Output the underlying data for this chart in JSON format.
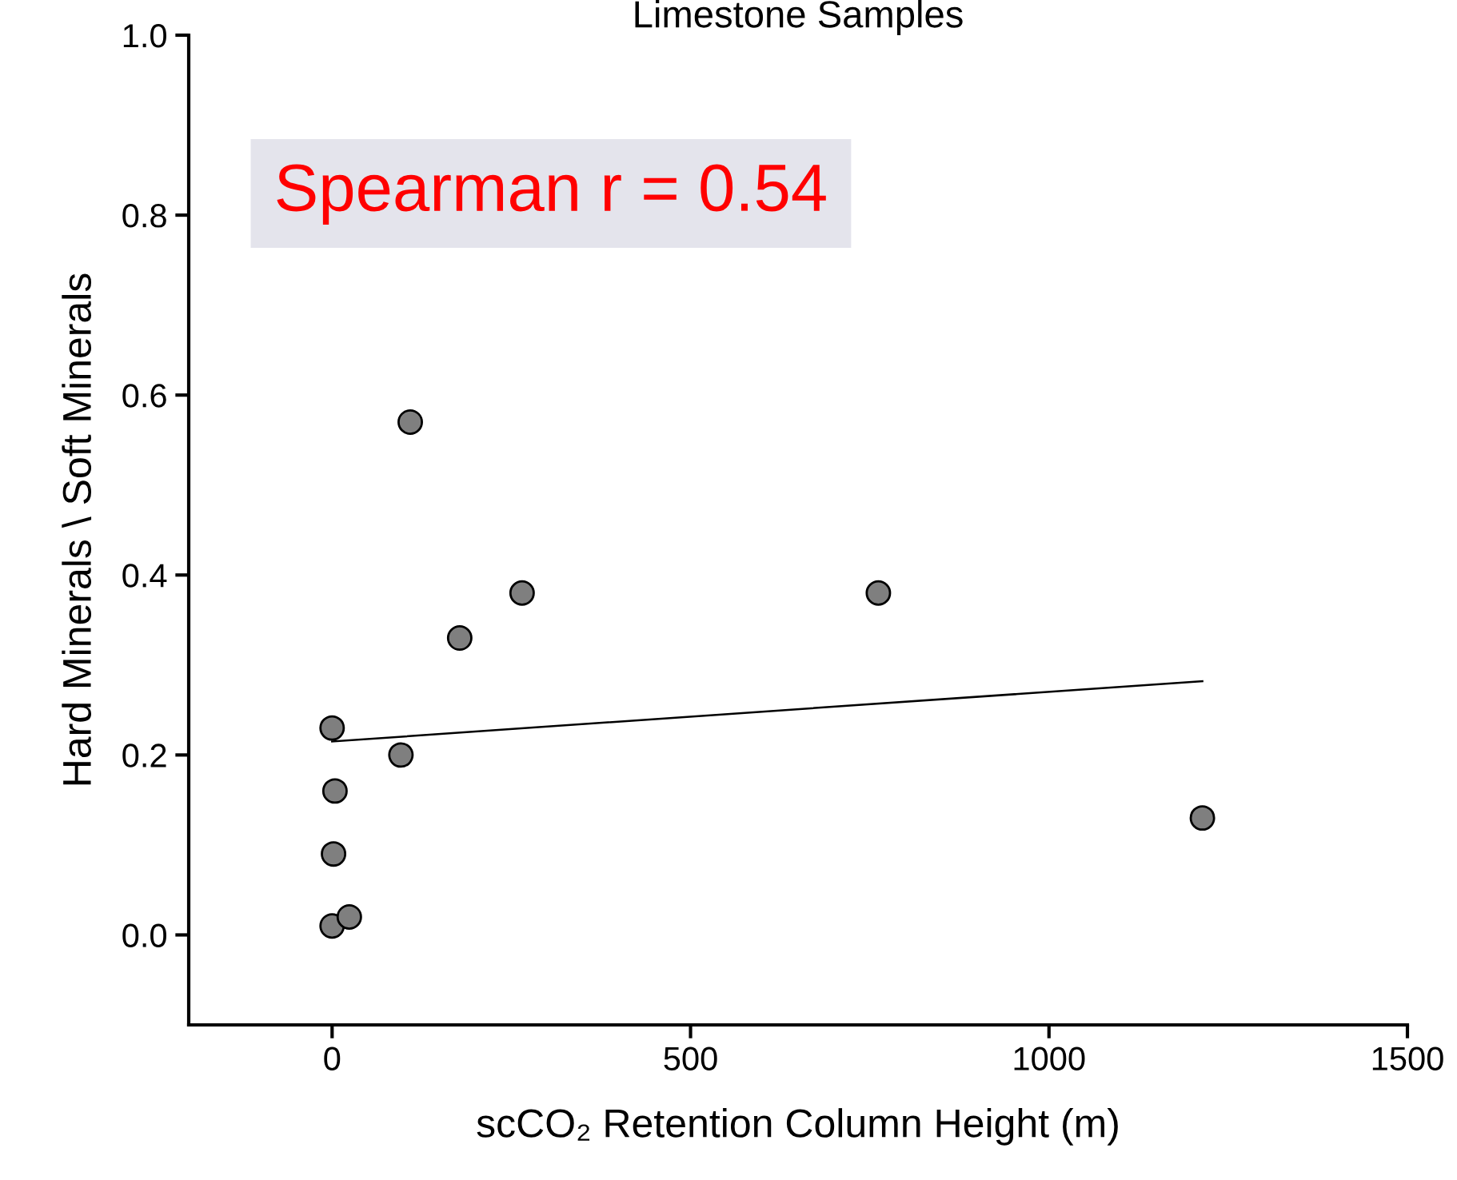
{
  "chart_data": {
    "type": "scatter",
    "title": "Limestone Samples",
    "xlabel": "scCO₂ Retention Column Height (m)",
    "ylabel": "Hard Minerals \\ Soft Minerals",
    "xlim": [
      -200,
      1500
    ],
    "xticks": [
      0,
      500,
      1000,
      1500
    ],
    "ylim": [
      -0.1,
      1.0
    ],
    "yticks": [
      {
        "value": 0.0,
        "label": "0.0"
      },
      0.2,
      0.4,
      0.6,
      0.8,
      {
        "value": 1.0,
        "label": "1.0"
      }
    ],
    "grid": false,
    "series": [
      {
        "marker": "circle",
        "color": "#7f7f7f",
        "x": [
          0,
          24,
          2,
          4,
          0,
          96,
          109,
          178,
          265,
          762,
          1214
        ],
        "values": [
          0.01,
          0.02,
          0.09,
          0.16,
          0.23,
          0.2,
          0.57,
          0.33,
          0.38,
          0.38,
          0.13
        ]
      },
      {
        "type": "line",
        "color": "#000000",
        "x": [
          0,
          1214
        ],
        "values": [
          0.215,
          0.282
        ]
      }
    ],
    "annotations": [
      "Spearman r = 0.54"
    ]
  }
}
